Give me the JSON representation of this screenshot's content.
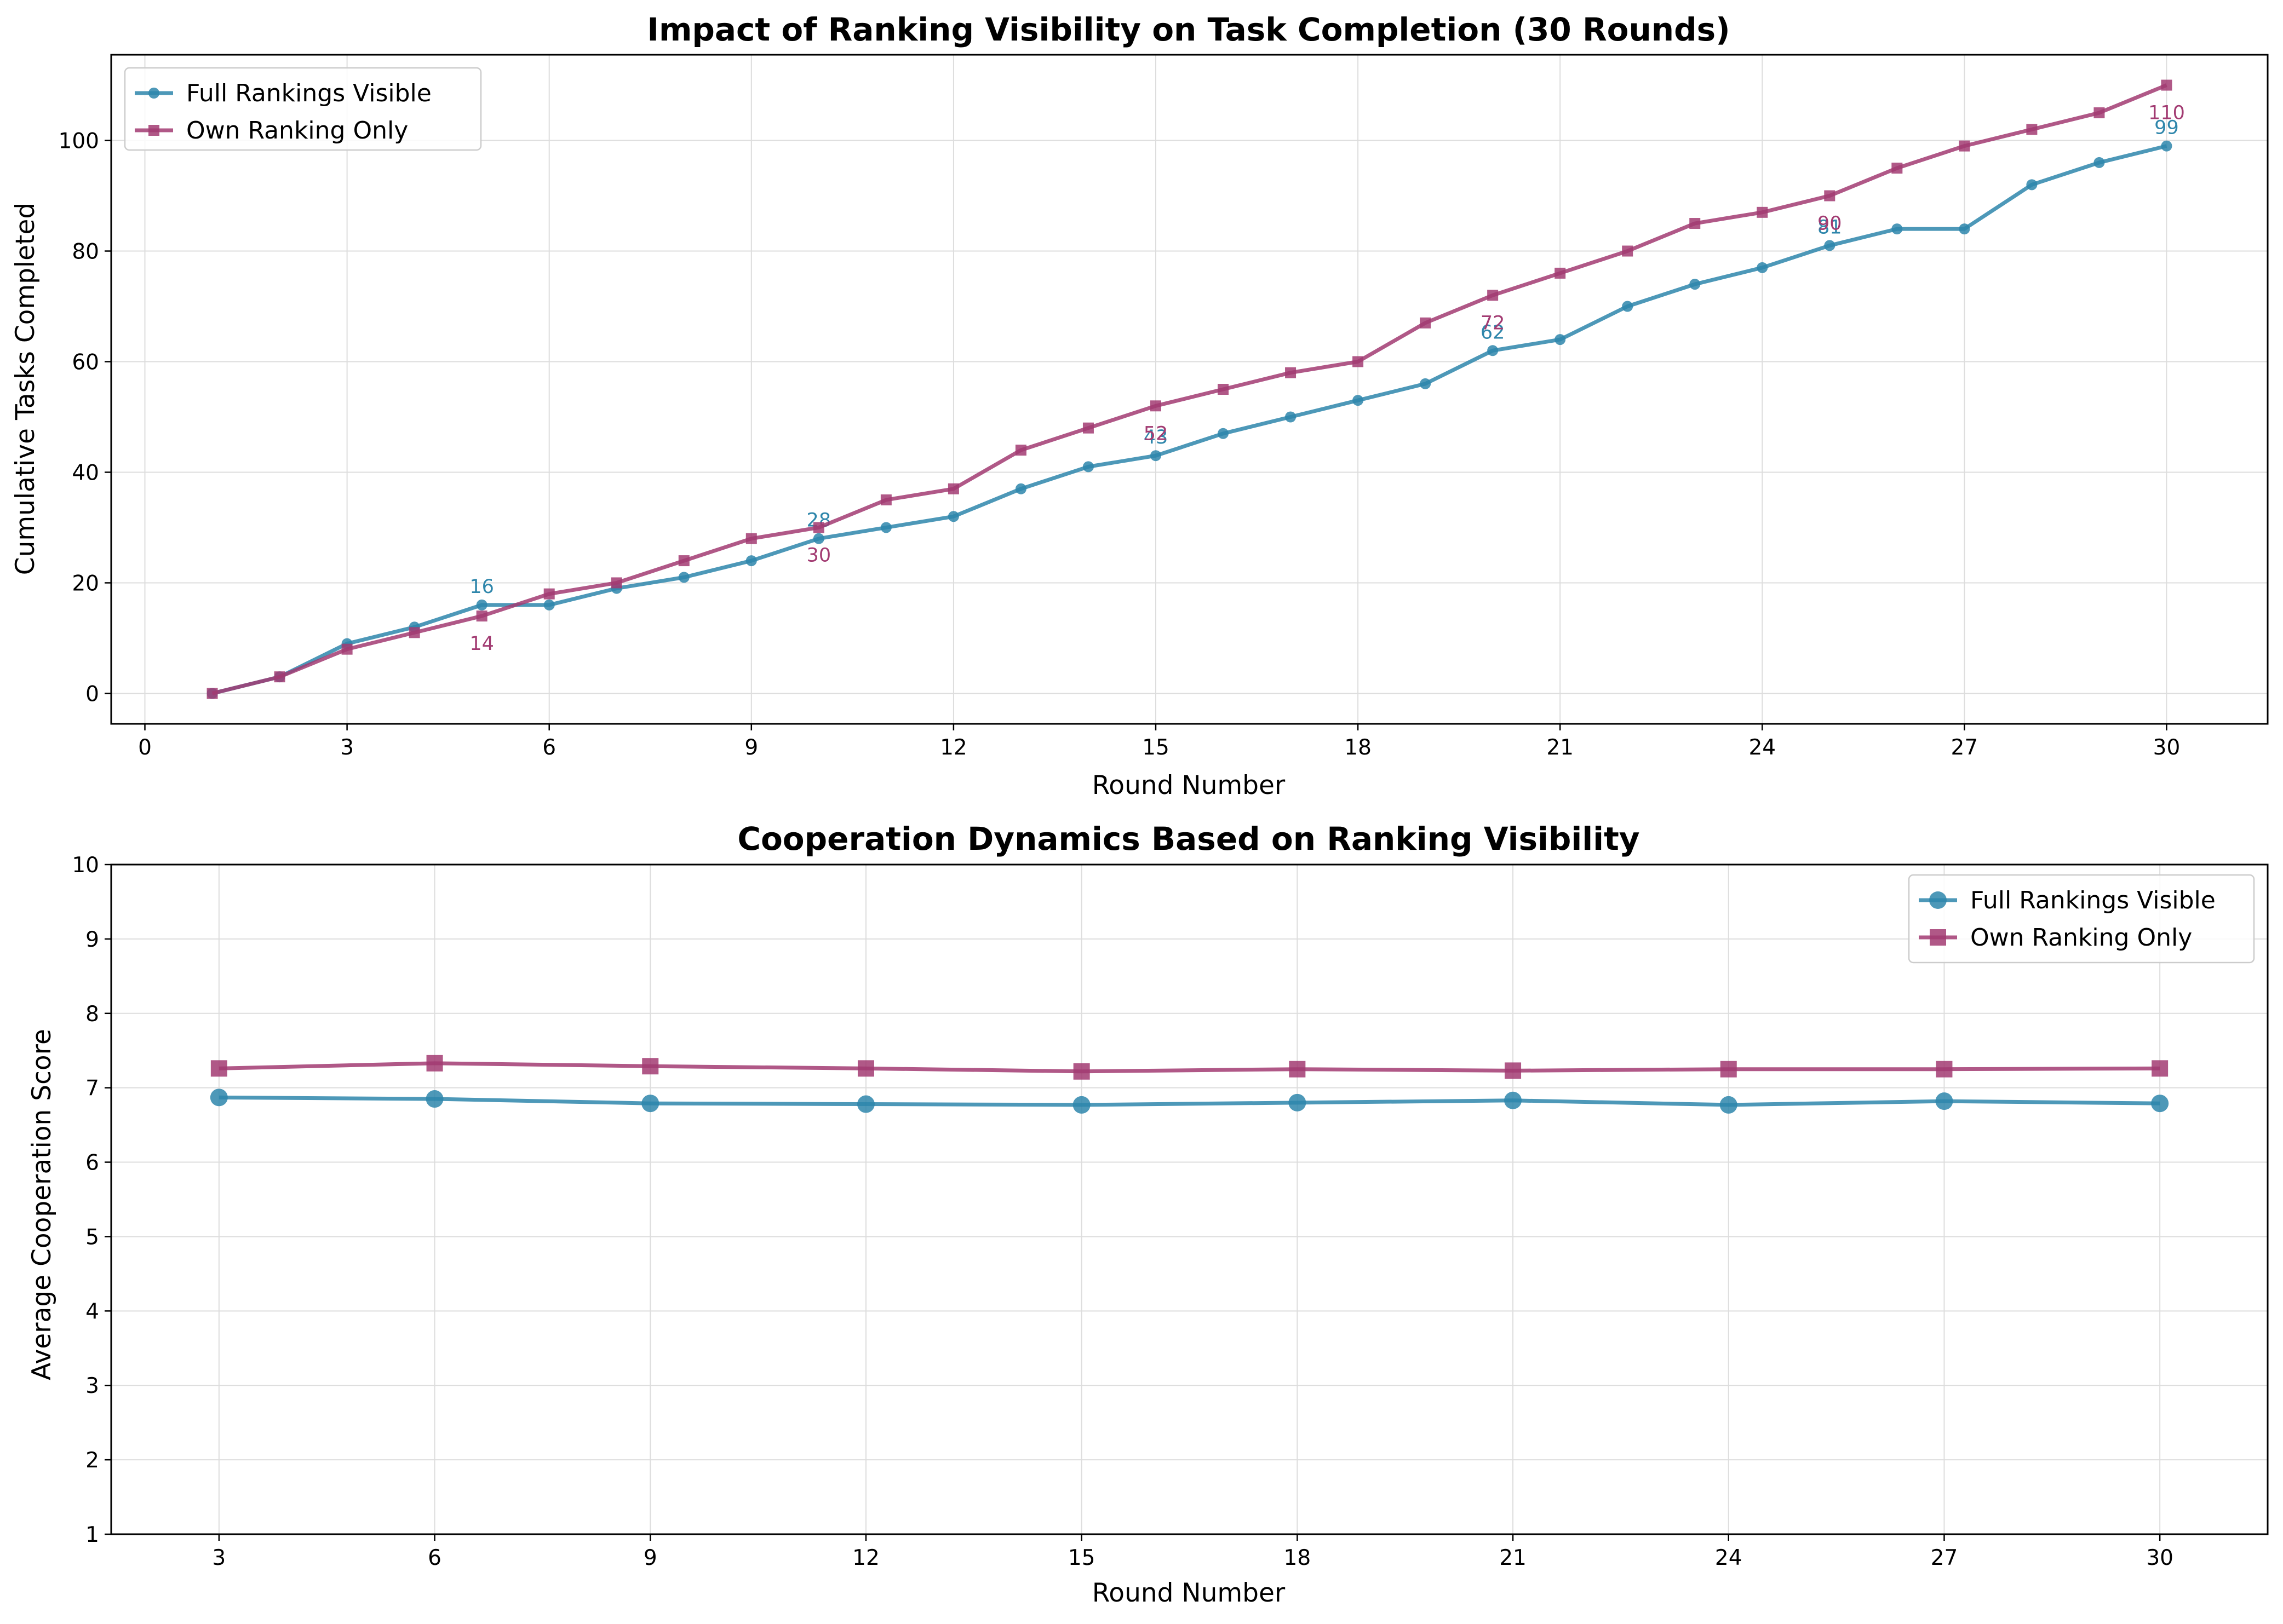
{
  "colors": {
    "full": "#2E86AB",
    "own": "#A23B72",
    "grid": "#dddddd",
    "axis": "#000000"
  },
  "chart_data": [
    {
      "type": "line",
      "title": "Impact of Ranking Visibility on Task Completion (30 Rounds)",
      "xlabel": "Round Number",
      "ylabel": "Cumulative Tasks Completed",
      "xlim": [
        -0.5,
        31.5
      ],
      "ylim": [
        -5.5,
        115.5
      ],
      "xticks": [
        0,
        3,
        6,
        9,
        12,
        15,
        18,
        21,
        24,
        27,
        30
      ],
      "xtick_labels": [
        "0",
        "3",
        "6",
        "9",
        "12",
        "15",
        "18",
        "21",
        "24",
        "27",
        "30"
      ],
      "yticks": [
        0,
        20,
        40,
        60,
        80,
        100
      ],
      "ytick_labels": [
        "0",
        "20",
        "40",
        "60",
        "80",
        "100"
      ],
      "grid": true,
      "legend_position": "upper-left",
      "x": [
        1,
        2,
        3,
        4,
        5,
        6,
        7,
        8,
        9,
        10,
        11,
        12,
        13,
        14,
        15,
        16,
        17,
        18,
        19,
        20,
        21,
        22,
        23,
        24,
        25,
        26,
        27,
        28,
        29,
        30
      ],
      "series": [
        {
          "name": "Full Rankings Visible",
          "color_key": "full",
          "marker": "circle",
          "values": [
            0,
            3,
            9,
            12,
            16,
            16,
            19,
            21,
            24,
            28,
            30,
            32,
            37,
            41,
            43,
            47,
            50,
            53,
            56,
            62,
            64,
            70,
            74,
            77,
            81,
            84,
            84,
            92,
            96,
            99
          ],
          "annotations": [
            {
              "x": 5,
              "y": 16,
              "text": "16"
            },
            {
              "x": 10,
              "y": 28,
              "text": "28"
            },
            {
              "x": 15,
              "y": 43,
              "text": "43"
            },
            {
              "x": 20,
              "y": 62,
              "text": "62"
            },
            {
              "x": 25,
              "y": 81,
              "text": "81"
            },
            {
              "x": 30,
              "y": 99,
              "text": "99"
            }
          ]
        },
        {
          "name": "Own Ranking Only",
          "color_key": "own",
          "marker": "square",
          "values": [
            0,
            3,
            8,
            11,
            14,
            18,
            20,
            24,
            28,
            30,
            35,
            37,
            44,
            48,
            52,
            55,
            58,
            60,
            67,
            72,
            76,
            80,
            85,
            87,
            90,
            95,
            99,
            102,
            105,
            110
          ],
          "annotations": [
            {
              "x": 5,
              "y": 14,
              "text": "14"
            },
            {
              "x": 10,
              "y": 30,
              "text": "30"
            },
            {
              "x": 15,
              "y": 52,
              "text": "52"
            },
            {
              "x": 20,
              "y": 72,
              "text": "72"
            },
            {
              "x": 25,
              "y": 90,
              "text": "90"
            },
            {
              "x": 30,
              "y": 110,
              "text": "110"
            }
          ]
        }
      ]
    },
    {
      "type": "line",
      "title": "Cooperation Dynamics Based on Ranking Visibility",
      "xlabel": "Round Number",
      "ylabel": "Average Cooperation Score",
      "xlim": [
        1.5,
        31.5
      ],
      "ylim": [
        1,
        10
      ],
      "xticks": [
        3,
        6,
        9,
        12,
        15,
        18,
        21,
        24,
        27,
        30
      ],
      "xtick_labels": [
        "3",
        "6",
        "9",
        "12",
        "15",
        "18",
        "21",
        "24",
        "27",
        "30"
      ],
      "yticks": [
        1,
        2,
        3,
        4,
        5,
        6,
        7,
        8,
        9,
        10
      ],
      "ytick_labels": [
        "1",
        "2",
        "3",
        "4",
        "5",
        "6",
        "7",
        "8",
        "9",
        "10"
      ],
      "grid": true,
      "legend_position": "upper-right",
      "x": [
        3,
        6,
        9,
        12,
        15,
        18,
        21,
        24,
        27,
        30
      ],
      "series": [
        {
          "name": "Full Rankings Visible",
          "color_key": "full",
          "marker": "circle",
          "values": [
            6.87,
            6.85,
            6.79,
            6.78,
            6.77,
            6.8,
            6.83,
            6.77,
            6.82,
            6.79
          ]
        },
        {
          "name": "Own Ranking Only",
          "color_key": "own",
          "marker": "square",
          "values": [
            7.26,
            7.33,
            7.29,
            7.26,
            7.22,
            7.25,
            7.23,
            7.25,
            7.25,
            7.26
          ]
        }
      ]
    }
  ]
}
